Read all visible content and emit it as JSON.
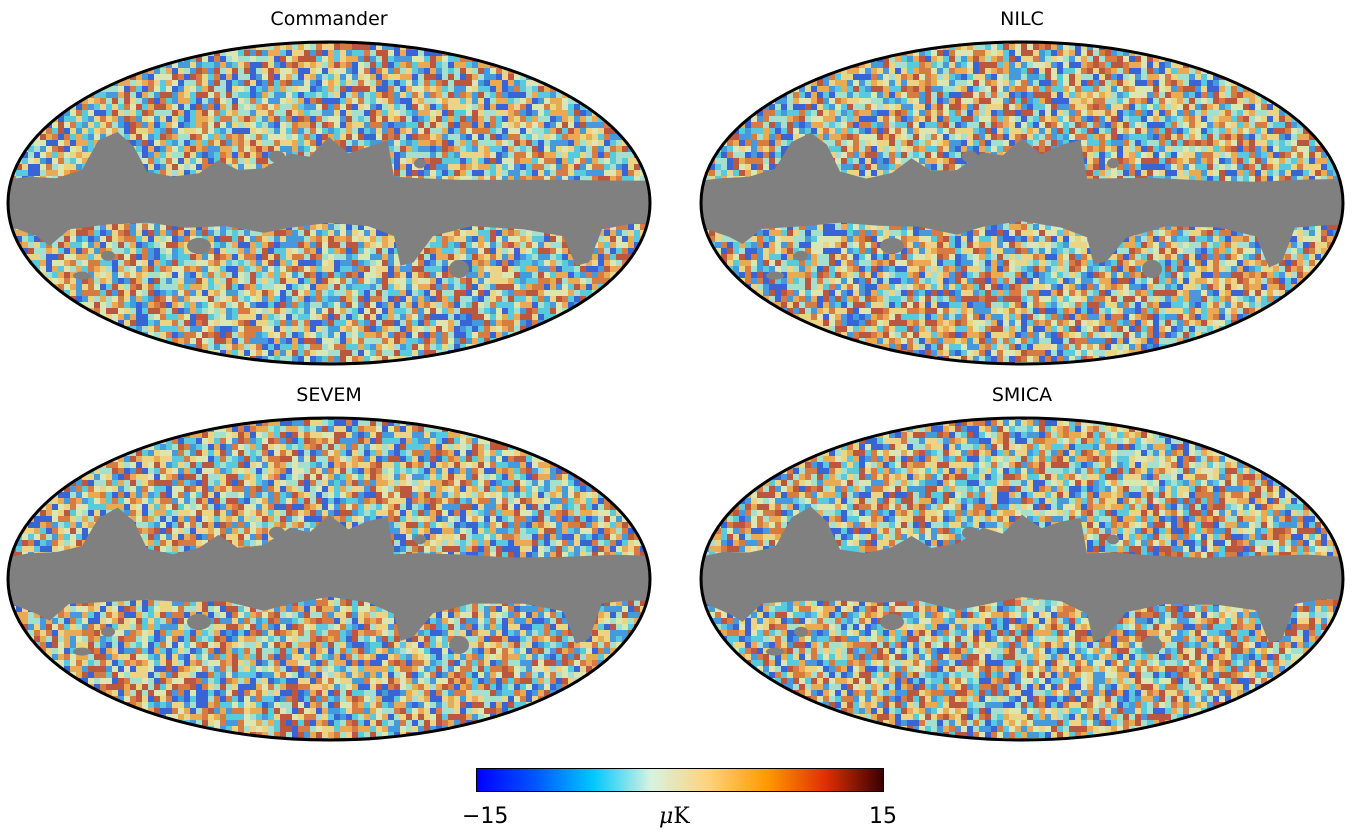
{
  "figure": {
    "panels": [
      {
        "id": "commander",
        "title": "Commander"
      },
      {
        "id": "nilc",
        "title": "NILC"
      },
      {
        "id": "sevem",
        "title": "SEVEM"
      },
      {
        "id": "smica",
        "title": "SMICA"
      }
    ],
    "projection": "mollweide",
    "mask_color": "#808080",
    "outline_color": "#000000"
  },
  "colorbar": {
    "min_label": "−15",
    "max_label": "15",
    "unit_prefix": "μ",
    "unit_suffix": "K",
    "min": -15,
    "max": 15,
    "colors": [
      "#0000ff",
      "#0055ff",
      "#00c8ff",
      "#d8f3e0",
      "#ffd27a",
      "#ff9a00",
      "#e03000",
      "#3a0000"
    ]
  }
}
